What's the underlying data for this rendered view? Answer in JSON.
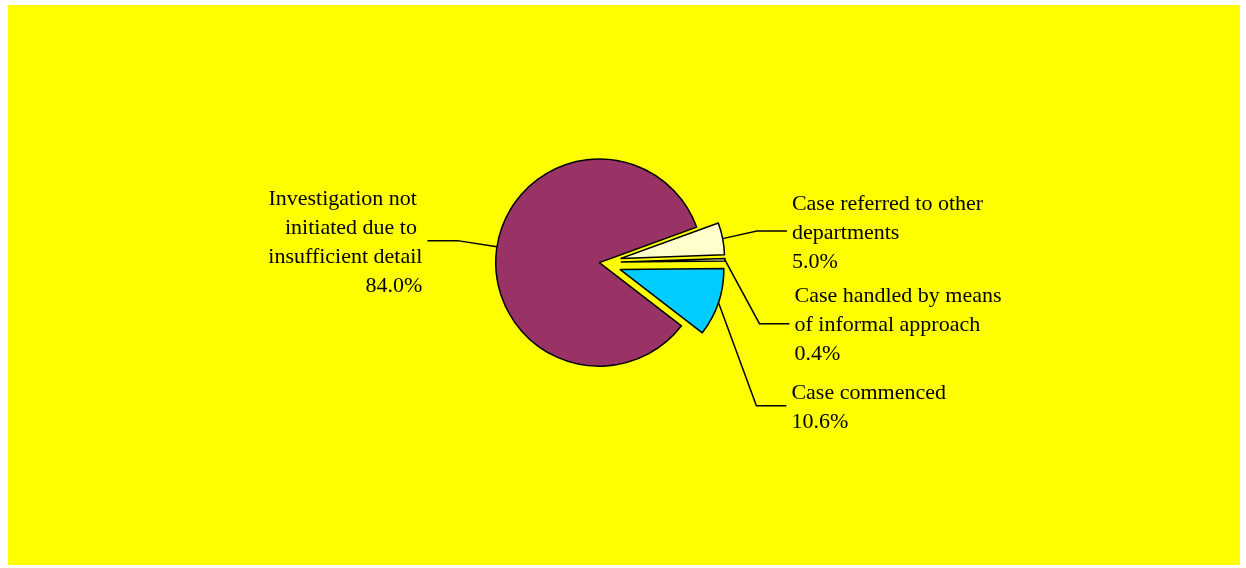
{
  "chart_data": {
    "type": "pie",
    "categories": [
      "Case referred to other departments",
      "Case handled by means of informal approach",
      "Case commenced",
      "Investigation not initiated due to insufficient detail"
    ],
    "values": [
      5.0,
      0.4,
      10.6,
      84.0
    ],
    "value_labels": [
      "5.0%",
      "0.4%",
      "10.6%",
      "84.0%"
    ],
    "colors": [
      "#ffffcc",
      "#ffffcc",
      "#00ccff",
      "#993366"
    ],
    "legend": false
  }
}
